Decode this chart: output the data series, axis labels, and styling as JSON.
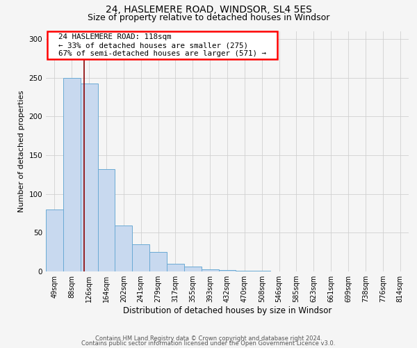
{
  "title1": "24, HASLEMERE ROAD, WINDSOR, SL4 5ES",
  "title2": "Size of property relative to detached houses in Windsor",
  "xlabel": "Distribution of detached houses by size in Windsor",
  "ylabel": "Number of detached properties",
  "bin_labels": [
    "49sqm",
    "88sqm",
    "126sqm",
    "164sqm",
    "202sqm",
    "241sqm",
    "279sqm",
    "317sqm",
    "355sqm",
    "393sqm",
    "432sqm",
    "470sqm",
    "508sqm",
    "546sqm",
    "585sqm",
    "623sqm",
    "661sqm",
    "699sqm",
    "738sqm",
    "776sqm",
    "814sqm"
  ],
  "bar_heights": [
    80,
    250,
    243,
    132,
    59,
    35,
    25,
    10,
    6,
    3,
    2,
    1,
    1,
    0,
    0,
    0,
    0,
    0,
    0,
    0,
    0
  ],
  "bar_color": "#c8d9ef",
  "bar_edge_color": "#6aaad4",
  "vline_x": 1.72,
  "annotation_text": "  24 HASLEMERE ROAD: 118sqm  \n  ← 33% of detached houses are smaller (275)  \n  67% of semi-detached houses are larger (571) →  ",
  "annotation_box_color": "white",
  "annotation_box_edge": "red",
  "footer1": "Contains HM Land Registry data © Crown copyright and database right 2024.",
  "footer2": "Contains public sector information licensed under the Open Government Licence v3.0.",
  "ylim": [
    0,
    310
  ],
  "yticks": [
    0,
    50,
    100,
    150,
    200,
    250,
    300
  ],
  "background_color": "#f5f5f5",
  "title1_fontsize": 10,
  "title2_fontsize": 9,
  "ylabel_fontsize": 8,
  "xlabel_fontsize": 8.5,
  "tick_fontsize": 7,
  "footer_fontsize": 6
}
